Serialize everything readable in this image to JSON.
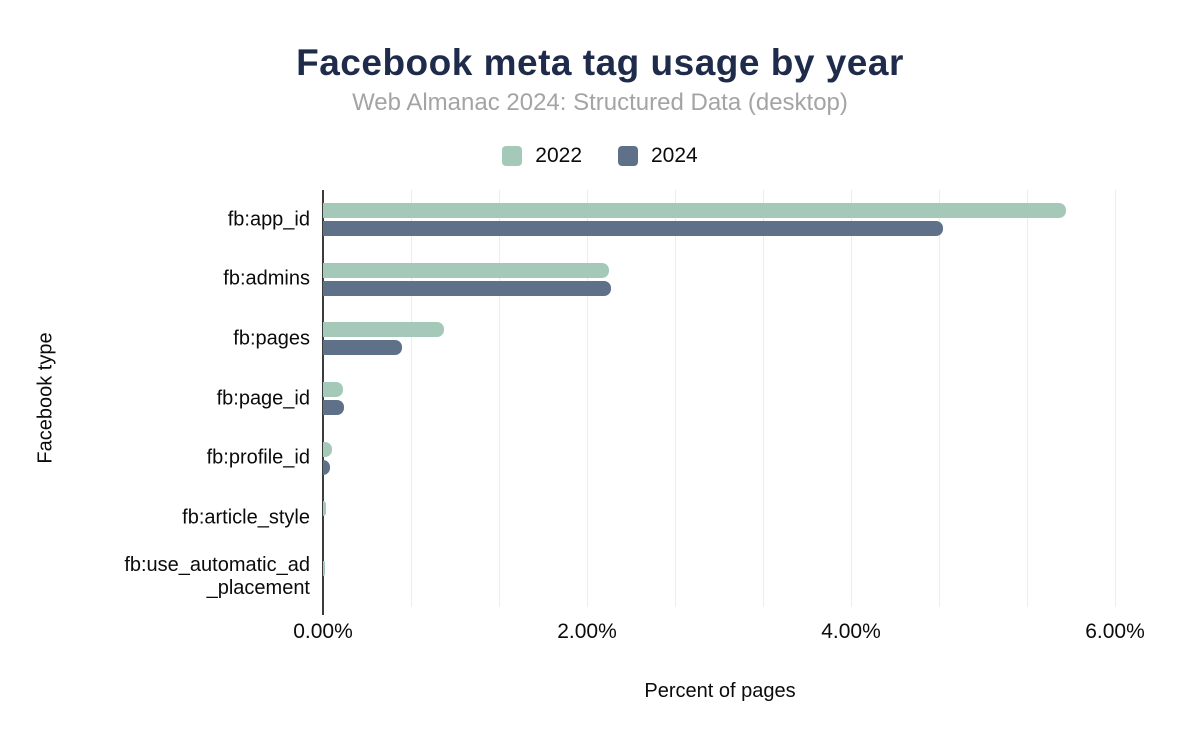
{
  "chart_data": {
    "type": "bar",
    "orientation": "horizontal",
    "title": "Facebook meta tag usage by year",
    "subtitle": "Web Almanac 2024: Structured Data (desktop)",
    "xlabel": "Percent of pages",
    "ylabel": "Facebook type",
    "categories": [
      "fb:app_id",
      "fb:admins",
      "fb:pages",
      "fb:page_id",
      "fb:profile_id",
      "fb:article_style",
      "fb:use_automatic_ad\n_placement"
    ],
    "series": [
      {
        "name": "2022",
        "color": "#a5c9b8",
        "values": [
          5.63,
          2.17,
          0.92,
          0.15,
          0.07,
          0.02,
          0.015
        ]
      },
      {
        "name": "2024",
        "color": "#5e7189",
        "values": [
          4.7,
          2.18,
          0.6,
          0.16,
          0.05,
          0.0,
          0.0
        ]
      }
    ],
    "x_ticks": [
      {
        "label": "0.00%",
        "value": 0
      },
      {
        "label": "2.00%",
        "value": 2
      },
      {
        "label": "4.00%",
        "value": 4
      },
      {
        "label": "6.00%",
        "value": 6
      }
    ],
    "xlim": [
      0,
      6.2
    ],
    "grid": true,
    "gridline_interval_pct": 0.6667,
    "legend_position": "top",
    "values_unit": "%"
  },
  "colors": {
    "title": "#1f2b4a",
    "subtitle": "#a4a4a4",
    "series_2022": "#a5c9b8",
    "series_2024": "#5e7189",
    "gridline": "#ececec",
    "axis_line": "#3c3c3c",
    "text": "#0b0b0b",
    "background": "#ffffff"
  }
}
